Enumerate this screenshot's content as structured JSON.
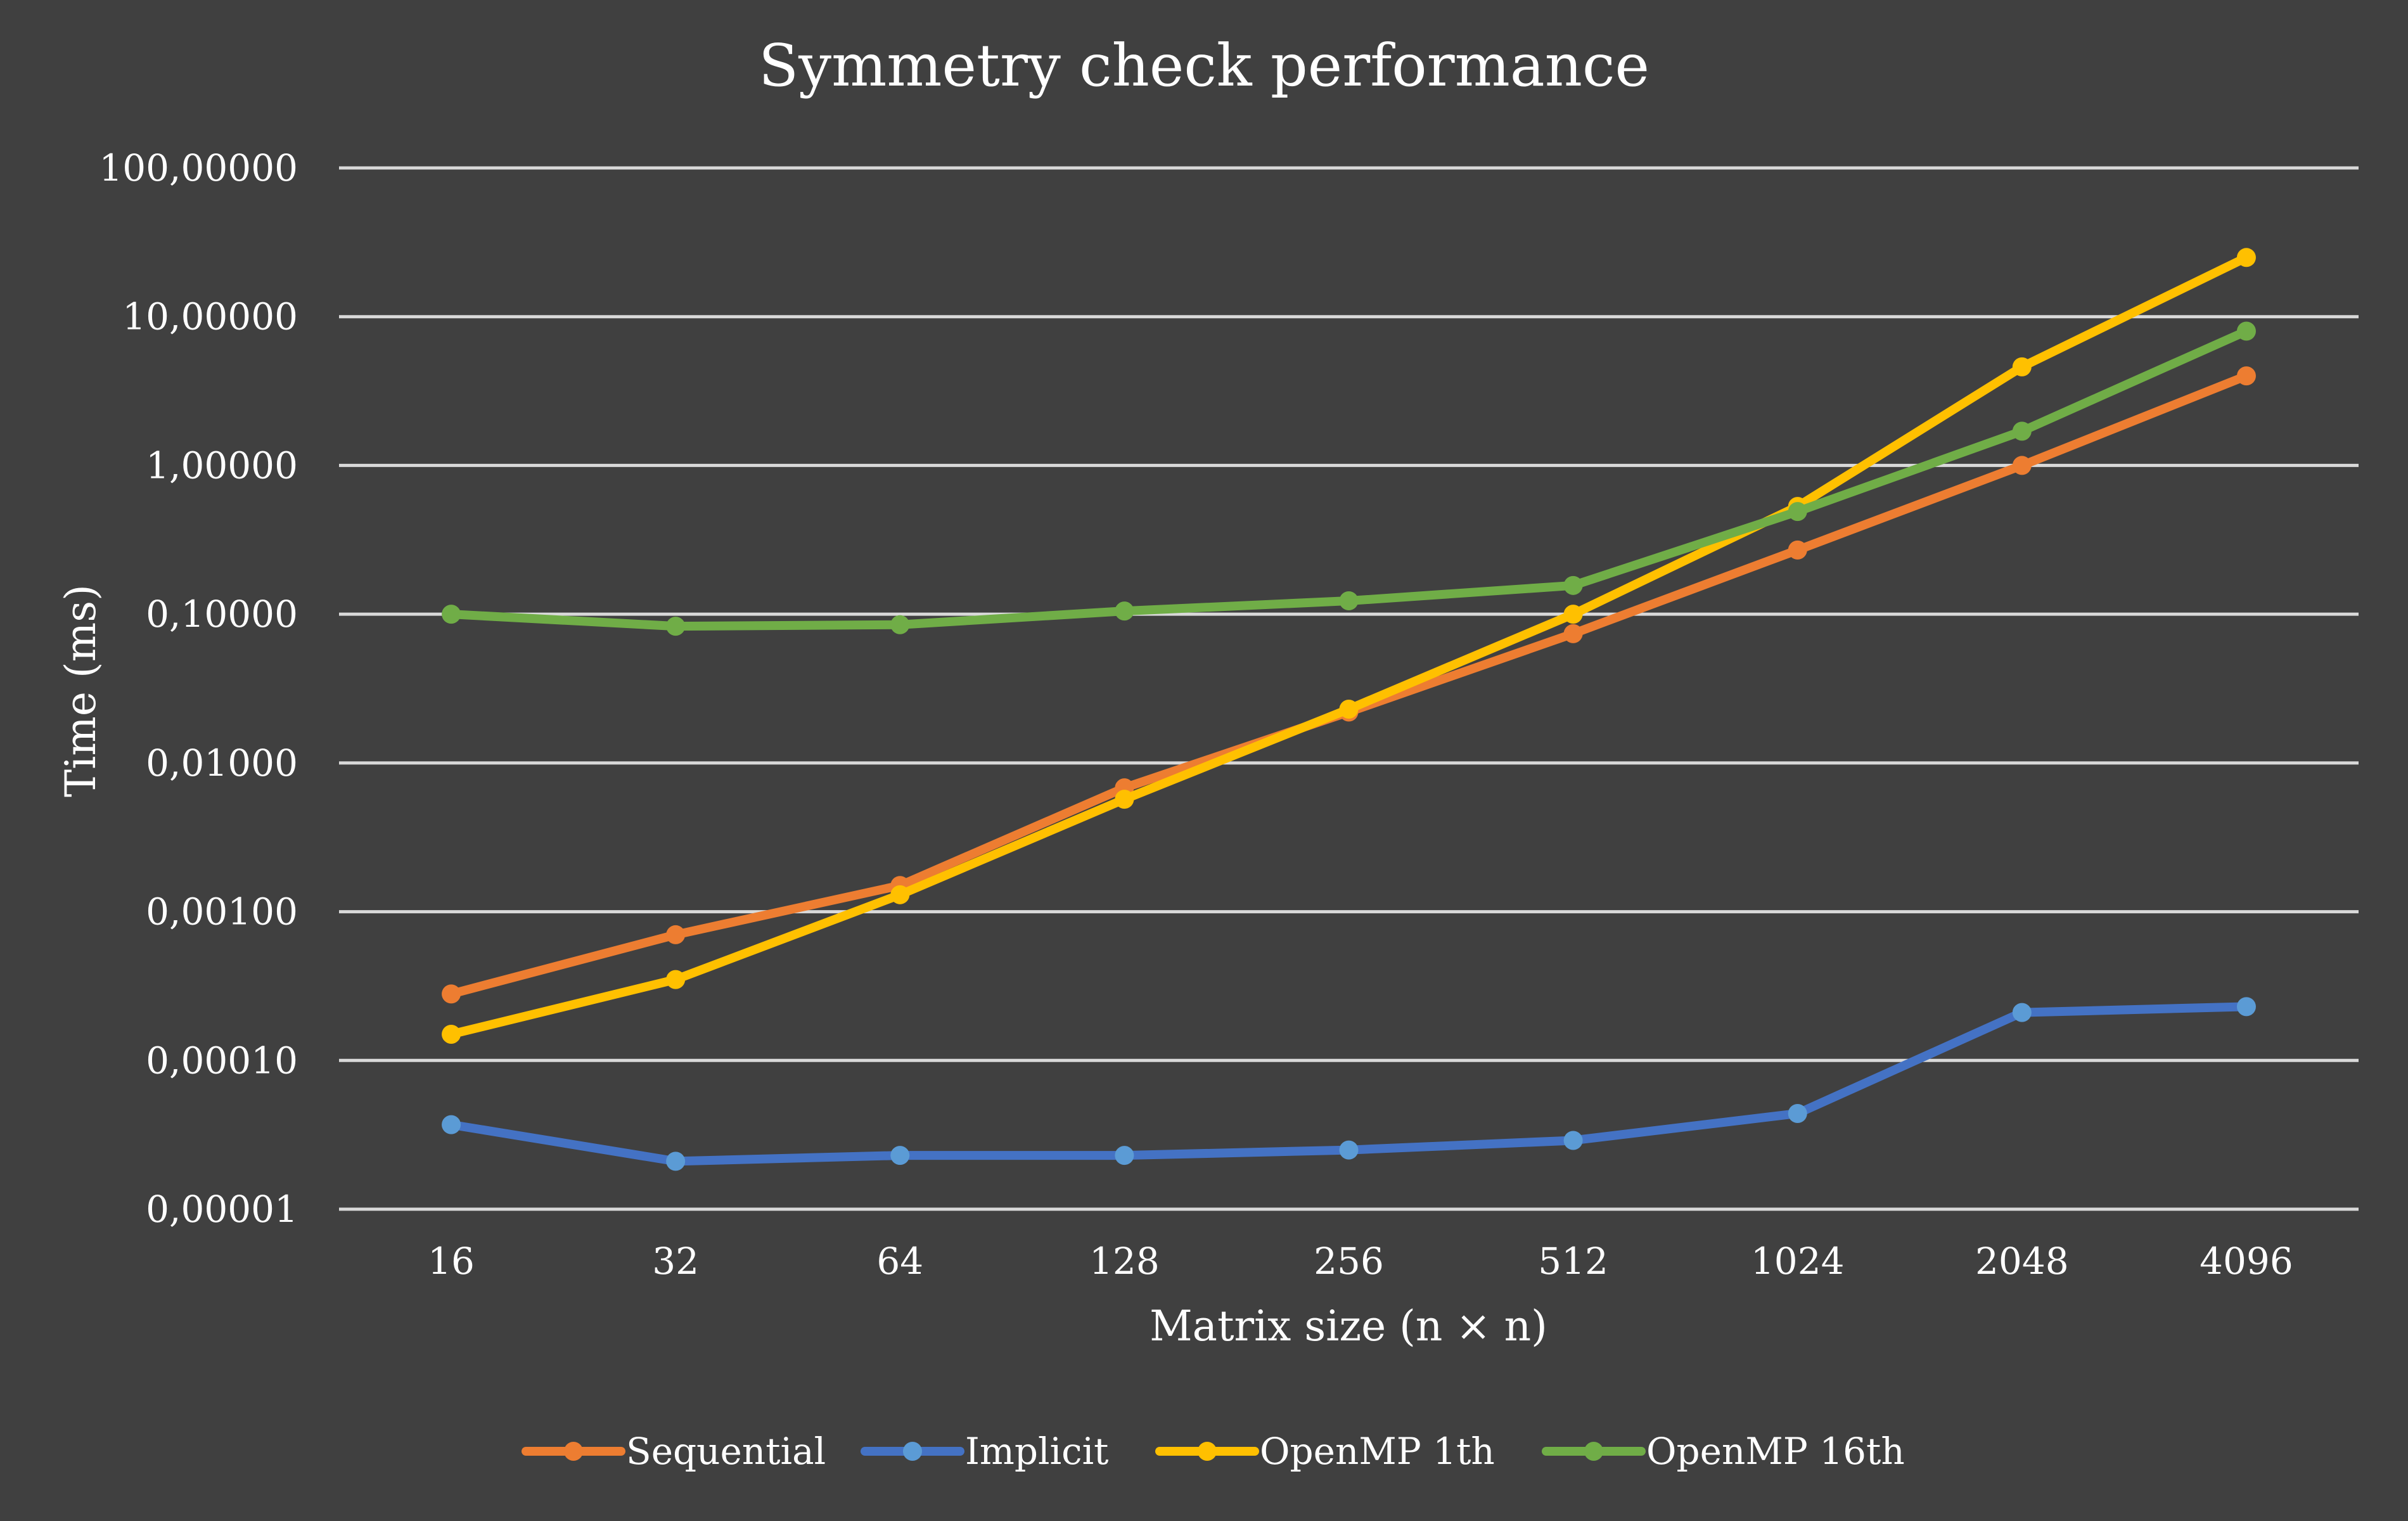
{
  "chart_data": {
    "type": "line",
    "title": "Symmetry check performance",
    "xlabel": "Matrix size (n × n)",
    "ylabel": "Time (ms)",
    "yscale": "log",
    "ylim": [
      1e-05,
      100
    ],
    "grid": true,
    "legend_position": "bottom",
    "categories": [
      "16",
      "32",
      "64",
      "128",
      "256",
      "512",
      "1024",
      "2048",
      "4096"
    ],
    "y_ticks": [
      {
        "value": 100,
        "label": "100,00000"
      },
      {
        "value": 10,
        "label": "10,00000"
      },
      {
        "value": 1,
        "label": "1,00000"
      },
      {
        "value": 0.1,
        "label": "0,10000"
      },
      {
        "value": 0.01,
        "label": "0,01000"
      },
      {
        "value": 0.001,
        "label": "0,00100"
      },
      {
        "value": 0.0001,
        "label": "0,00010"
      },
      {
        "value": 1e-05,
        "label": "0,00001"
      }
    ],
    "series": [
      {
        "name": "Sequential",
        "color": "#ED7D31",
        "values": [
          0.00028,
          0.0007,
          0.0015,
          0.0068,
          0.022,
          0.074,
          0.27,
          1.0,
          4.0
        ]
      },
      {
        "name": "Implicit",
        "color": "#4472C4",
        "marker_color": "#5B9BD5",
        "values": [
          3.7e-05,
          2.1e-05,
          2.3e-05,
          2.3e-05,
          2.5e-05,
          2.9e-05,
          4.4e-05,
          0.00021,
          0.00023
        ]
      },
      {
        "name": "OpenMP 1th",
        "color": "#FFC000",
        "values": [
          0.00015,
          0.00035,
          0.0013,
          0.0057,
          0.023,
          0.1,
          0.53,
          4.6,
          25.0
        ]
      },
      {
        "name": "OpenMP 16th",
        "color": "#70AD47",
        "values": [
          0.1,
          0.083,
          0.085,
          0.105,
          0.123,
          0.156,
          0.49,
          1.7,
          8.0
        ]
      }
    ]
  }
}
